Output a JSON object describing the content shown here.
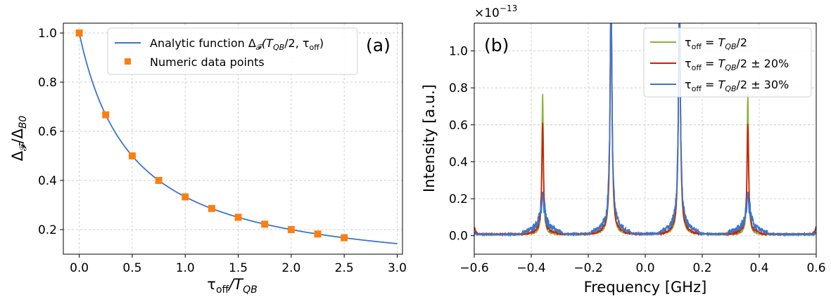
{
  "chart_data": [
    {
      "type": "line",
      "panel_label": "(a)",
      "xlabel_main": "τ",
      "xlabel_sub": "off",
      "xlabel_tail": "/T",
      "xlabel_tail_sub": "QB",
      "ylabel_main": "Δ",
      "ylabel_sub": "𝓕",
      "ylabel_mid": "/Δ",
      "ylabel_tail_sub": "B0",
      "xlim": [
        -0.15,
        3.05
      ],
      "ylim": [
        0.1,
        1.04
      ],
      "xticks": [
        "0.0",
        "0.5",
        "1.0",
        "1.5",
        "2.0",
        "2.5",
        "3.0"
      ],
      "xtick_values": [
        0,
        0.5,
        1,
        1.5,
        2,
        2.5,
        3
      ],
      "yticks": [
        "0.2",
        "0.4",
        "0.6",
        "0.8",
        "1.0"
      ],
      "ytick_values": [
        0.2,
        0.4,
        0.6,
        0.8,
        1.0
      ],
      "grid": true,
      "legend_position": "top-right",
      "series": [
        {
          "name": "Analytic function Δ𝓕(T_QB/2, τ_off)",
          "legend_text": "Analytic function Δ",
          "legend_sub": "𝓕",
          "legend_tail": "(T",
          "legend_tail_sub": "QB",
          "legend_tail2": "/2, τ",
          "legend_tail2_sub": "off",
          "legend_end": ")",
          "style": "line",
          "color": "#3b75cc",
          "function": "1/(1+2x)",
          "x_range": [
            0,
            3
          ]
        },
        {
          "name": "Numeric data points",
          "style": "marker-square",
          "color": "#ff7f0e",
          "x": [
            0,
            0.25,
            0.5,
            0.75,
            1.0,
            1.25,
            1.5,
            1.75,
            2.0,
            2.25,
            2.5
          ],
          "y": [
            1.0,
            0.667,
            0.5,
            0.4,
            0.333,
            0.286,
            0.25,
            0.222,
            0.2,
            0.182,
            0.167
          ]
        }
      ]
    },
    {
      "type": "line",
      "panel_label": "(b)",
      "scale_label": "×10",
      "scale_exp": "−13",
      "xlabel": "Frequency [GHz]",
      "ylabel": "Intensity [a.u.]",
      "xlim": [
        -0.6,
        0.6
      ],
      "ylim": [
        -0.1,
        1.15
      ],
      "xticks": [
        "−0.6",
        "−0.4",
        "−0.2",
        "0.0",
        "0.2",
        "0.4",
        "0.6"
      ],
      "xtick_values": [
        -0.6,
        -0.4,
        -0.2,
        0,
        0.2,
        0.4,
        0.6
      ],
      "yticks": [
        "0.0",
        "0.2",
        "0.4",
        "0.6",
        "0.8",
        "1.0"
      ],
      "ytick_values": [
        0,
        0.2,
        0.4,
        0.6,
        0.8,
        1.0
      ],
      "grid": true,
      "legend_position": "top-right",
      "peaks_ghz": [
        -0.36,
        -0.12,
        0.12,
        0.36
      ],
      "series": [
        {
          "name": "τ_off = T_QB/2",
          "leg_a": "τ",
          "leg_a_sub": "off",
          "leg_b": " = T",
          "leg_b_sub": "QB",
          "leg_c": "/2",
          "color": "#8db03c",
          "peak_heights": [
            0.76,
            1.3,
            1.3,
            0.76
          ],
          "peak_widths": [
            0.003,
            0.004,
            0.004,
            0.003
          ]
        },
        {
          "name": "τ_off = T_QB/2 ± 20%",
          "leg_a": "τ",
          "leg_a_sub": "off",
          "leg_b": " = T",
          "leg_b_sub": "QB",
          "leg_c": "/2 ± 20%",
          "color": "#cc2200",
          "peak_heights": [
            0.6,
            1.3,
            1.3,
            0.6
          ],
          "peak_widths": [
            0.0035,
            0.004,
            0.004,
            0.0035
          ]
        },
        {
          "name": "τ_off = T_QB/2 ± 30%",
          "leg_a": "τ",
          "leg_a_sub": "off",
          "leg_b": " = T",
          "leg_b_sub": "QB",
          "leg_c": "/2 ± 30%",
          "color": "#3b75cc",
          "peak_heights": [
            0.23,
            1.3,
            1.3,
            0.23
          ],
          "peak_widths": [
            0.005,
            0.004,
            0.004,
            0.005
          ]
        }
      ]
    }
  ]
}
